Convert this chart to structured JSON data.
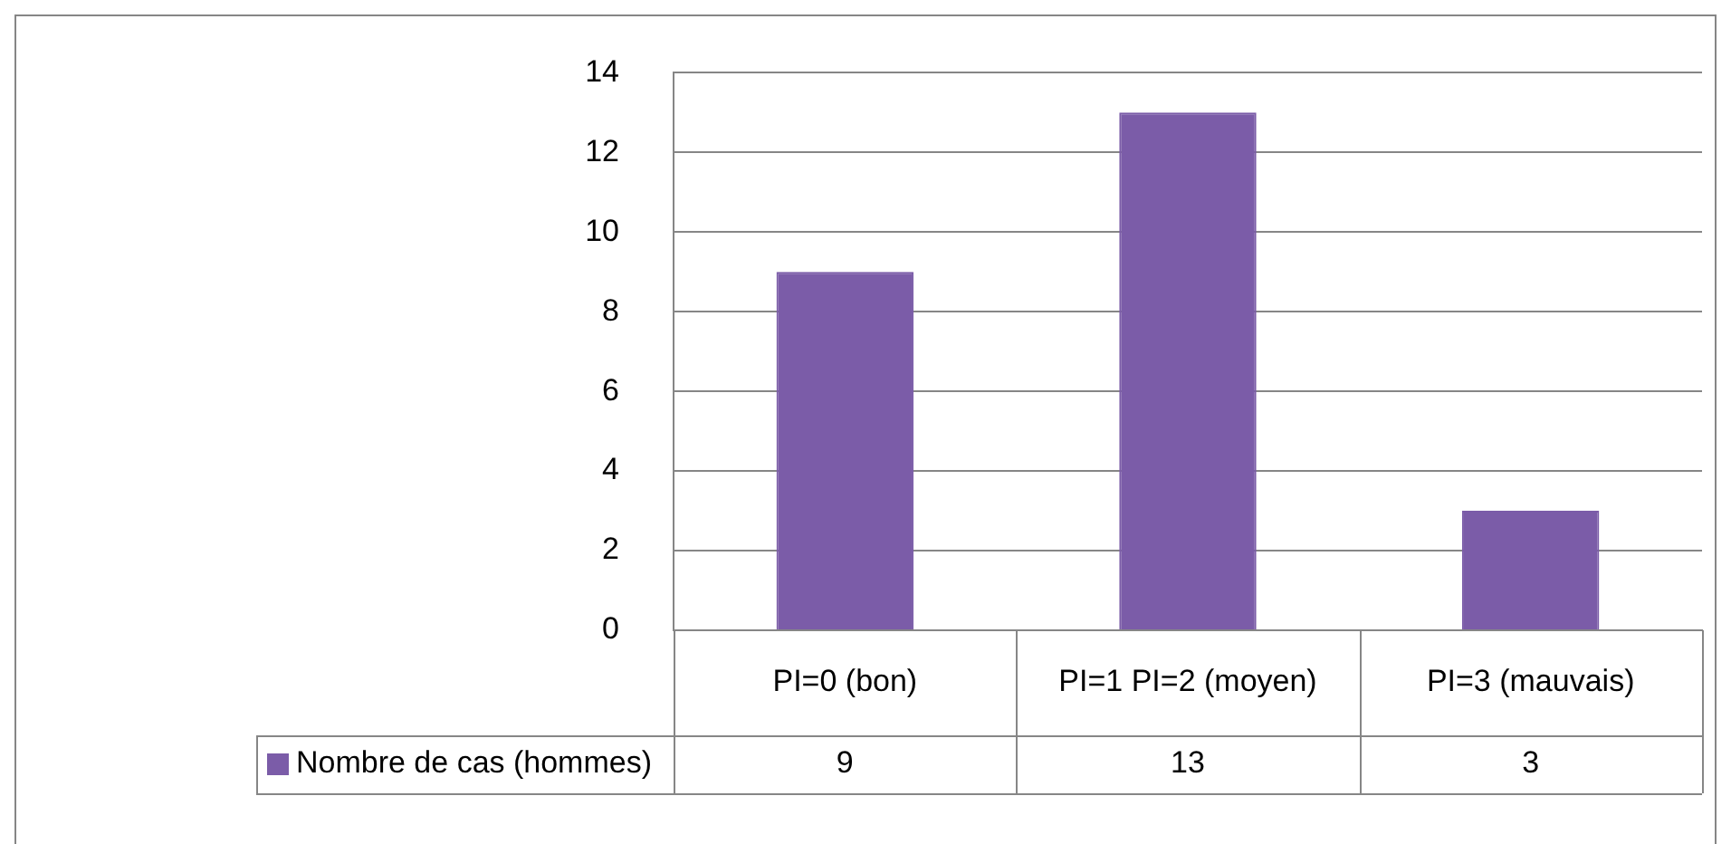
{
  "chart_data": {
    "type": "bar",
    "categories": [
      "PI=0 (bon)",
      "PI=1 PI=2 (moyen)",
      "PI=3 (mauvais)"
    ],
    "series": [
      {
        "name": "Nombre de cas (hommes)",
        "color": "#7b5ca8",
        "values": [
          9,
          13,
          3
        ]
      }
    ],
    "ylim": [
      0,
      14
    ],
    "yticks": [
      0,
      2,
      4,
      6,
      8,
      10,
      12,
      14
    ],
    "grid": "y",
    "legend": "bottom",
    "data_labels": true
  }
}
